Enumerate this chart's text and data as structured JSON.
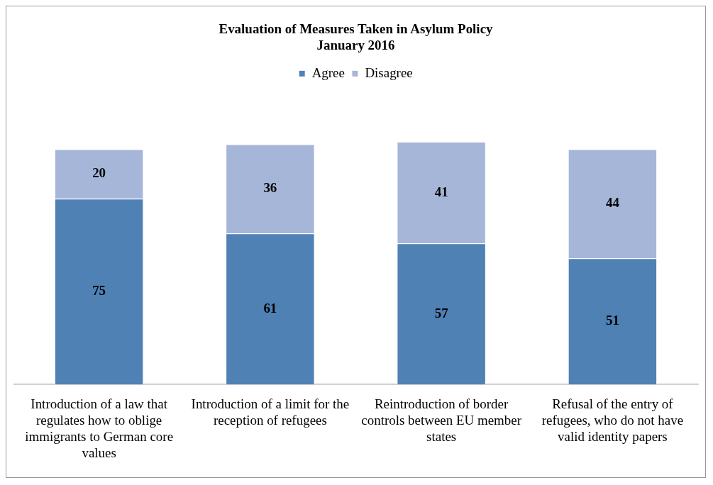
{
  "chart_data": {
    "type": "bar",
    "title": "Evaluation of Measures Taken in Asylum Policy\nJanuary 2016",
    "categories": [
      "Introduction of a law that regulates how to oblige immigrants to German core values",
      "Introduction of a limit for the reception of refugees",
      "Reintroduction of border controls between EU member states",
      "Refusal of the entry of refugees, who do not have valid identity papers"
    ],
    "series": [
      {
        "name": "Agree",
        "color": "#4f81b5",
        "values": [
          75,
          61,
          57,
          51
        ]
      },
      {
        "name": "Disagree",
        "color": "#a5b6d8",
        "values": [
          20,
          36,
          41,
          44
        ]
      }
    ],
    "stacked": true,
    "tick_labels": "x",
    "grid": false,
    "legend": "top",
    "data_labels": true
  }
}
